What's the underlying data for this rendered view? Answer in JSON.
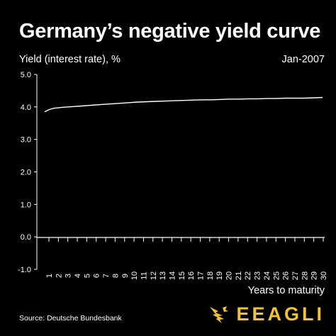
{
  "chart_data": {
    "type": "line",
    "title": "Germany’s negative yield curve",
    "ylabel": "Yield (interest rate), %",
    "xlabel": "Years to maturity",
    "date_label": "Jan-2007",
    "ylim": [
      -1.0,
      5.0
    ],
    "yticks": [
      "5.0",
      "4.0",
      "3.0",
      "2.0",
      "1.0",
      "0.0",
      "-1.0"
    ],
    "ytick_values": [
      5,
      4,
      3,
      2,
      1,
      0,
      -1
    ],
    "xlim": [
      0,
      30
    ],
    "xticks": [
      "1",
      "2",
      "3",
      "4",
      "5",
      "6",
      "7",
      "8",
      "9",
      "10",
      "11",
      "12",
      "13",
      "14",
      "15",
      "16",
      "17",
      "18",
      "19",
      "20",
      "21",
      "22",
      "23",
      "24",
      "25",
      "26",
      "27",
      "28",
      "29",
      "30"
    ],
    "grid": false,
    "series": [
      {
        "x": [
          0,
          0.5,
          1,
          2,
          3,
          4,
          5,
          6,
          7,
          8,
          9,
          10,
          11,
          12,
          13,
          14,
          15,
          16,
          17,
          18,
          19,
          20,
          21,
          22,
          23,
          24,
          25,
          26,
          27,
          28,
          29,
          30
        ],
        "values": [
          3.85,
          3.92,
          3.96,
          3.99,
          4.01,
          4.03,
          4.05,
          4.07,
          4.09,
          4.11,
          4.13,
          4.15,
          4.16,
          4.17,
          4.18,
          4.19,
          4.2,
          4.21,
          4.22,
          4.22,
          4.23,
          4.24,
          4.24,
          4.25,
          4.25,
          4.26,
          4.26,
          4.27,
          4.27,
          4.27,
          4.28,
          4.29
        ]
      }
    ]
  },
  "source": "Source: Deutsche Bundesbank",
  "brand": {
    "text": "EEAGLI",
    "color": "#f2c230"
  },
  "colors": {
    "background": "#000000",
    "line": "#ffffff"
  }
}
